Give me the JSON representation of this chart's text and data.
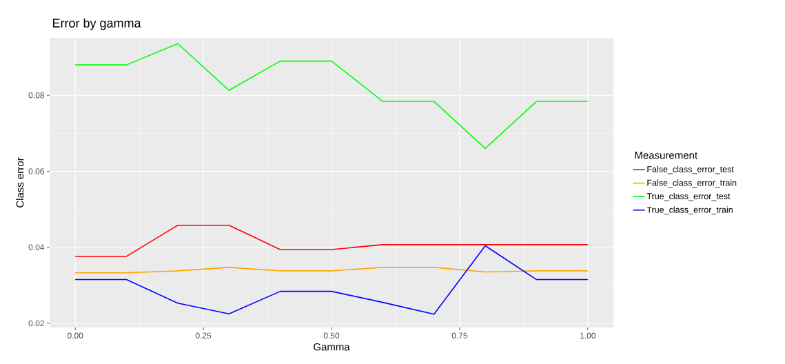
{
  "chart_data": {
    "type": "line",
    "title": "Error by gamma",
    "xlabel": "Gamma",
    "ylabel": "Class error",
    "legend_title": "Measurement",
    "x": [
      0.0,
      0.1,
      0.2,
      0.3,
      0.4,
      0.5,
      0.6,
      0.7,
      0.8,
      0.9,
      1.0
    ],
    "series": [
      {
        "name": "False_class_error_test",
        "color": "#ff0000",
        "values": [
          0.0376,
          0.0376,
          0.0458,
          0.0458,
          0.0394,
          0.0394,
          0.0407,
          0.0407,
          0.0407,
          0.0407,
          0.0407
        ]
      },
      {
        "name": "False_class_error_train",
        "color": "#ffa500",
        "values": [
          0.0333,
          0.0333,
          0.0338,
          0.0347,
          0.0338,
          0.0338,
          0.0347,
          0.0347,
          0.0335,
          0.0338,
          0.0338
        ]
      },
      {
        "name": "True_class_error_test",
        "color": "#00ff00",
        "values": [
          0.088,
          0.088,
          0.0936,
          0.0813,
          0.089,
          0.089,
          0.0784,
          0.0784,
          0.066,
          0.0784,
          0.0784
        ]
      },
      {
        "name": "True_class_error_train",
        "color": "#0000ff",
        "values": [
          0.0315,
          0.0315,
          0.0253,
          0.0225,
          0.0284,
          0.0284,
          0.0255,
          0.0224,
          0.0404,
          0.0315,
          0.0315
        ]
      }
    ],
    "xlim": [
      -0.05,
      1.05
    ],
    "ylim": [
      0.0189,
      0.0951
    ],
    "xticks": [
      {
        "value": 0,
        "label": "0.00"
      },
      {
        "value": 0.25,
        "label": "0.25"
      },
      {
        "value": 0.5,
        "label": "0.50"
      },
      {
        "value": 0.75,
        "label": "0.75"
      },
      {
        "value": 1,
        "label": "1.00"
      }
    ],
    "yticks": [
      0.02,
      0.04,
      0.06,
      0.08
    ],
    "grid": true,
    "legend": "right",
    "marker": "none",
    "line_style": "solid"
  }
}
